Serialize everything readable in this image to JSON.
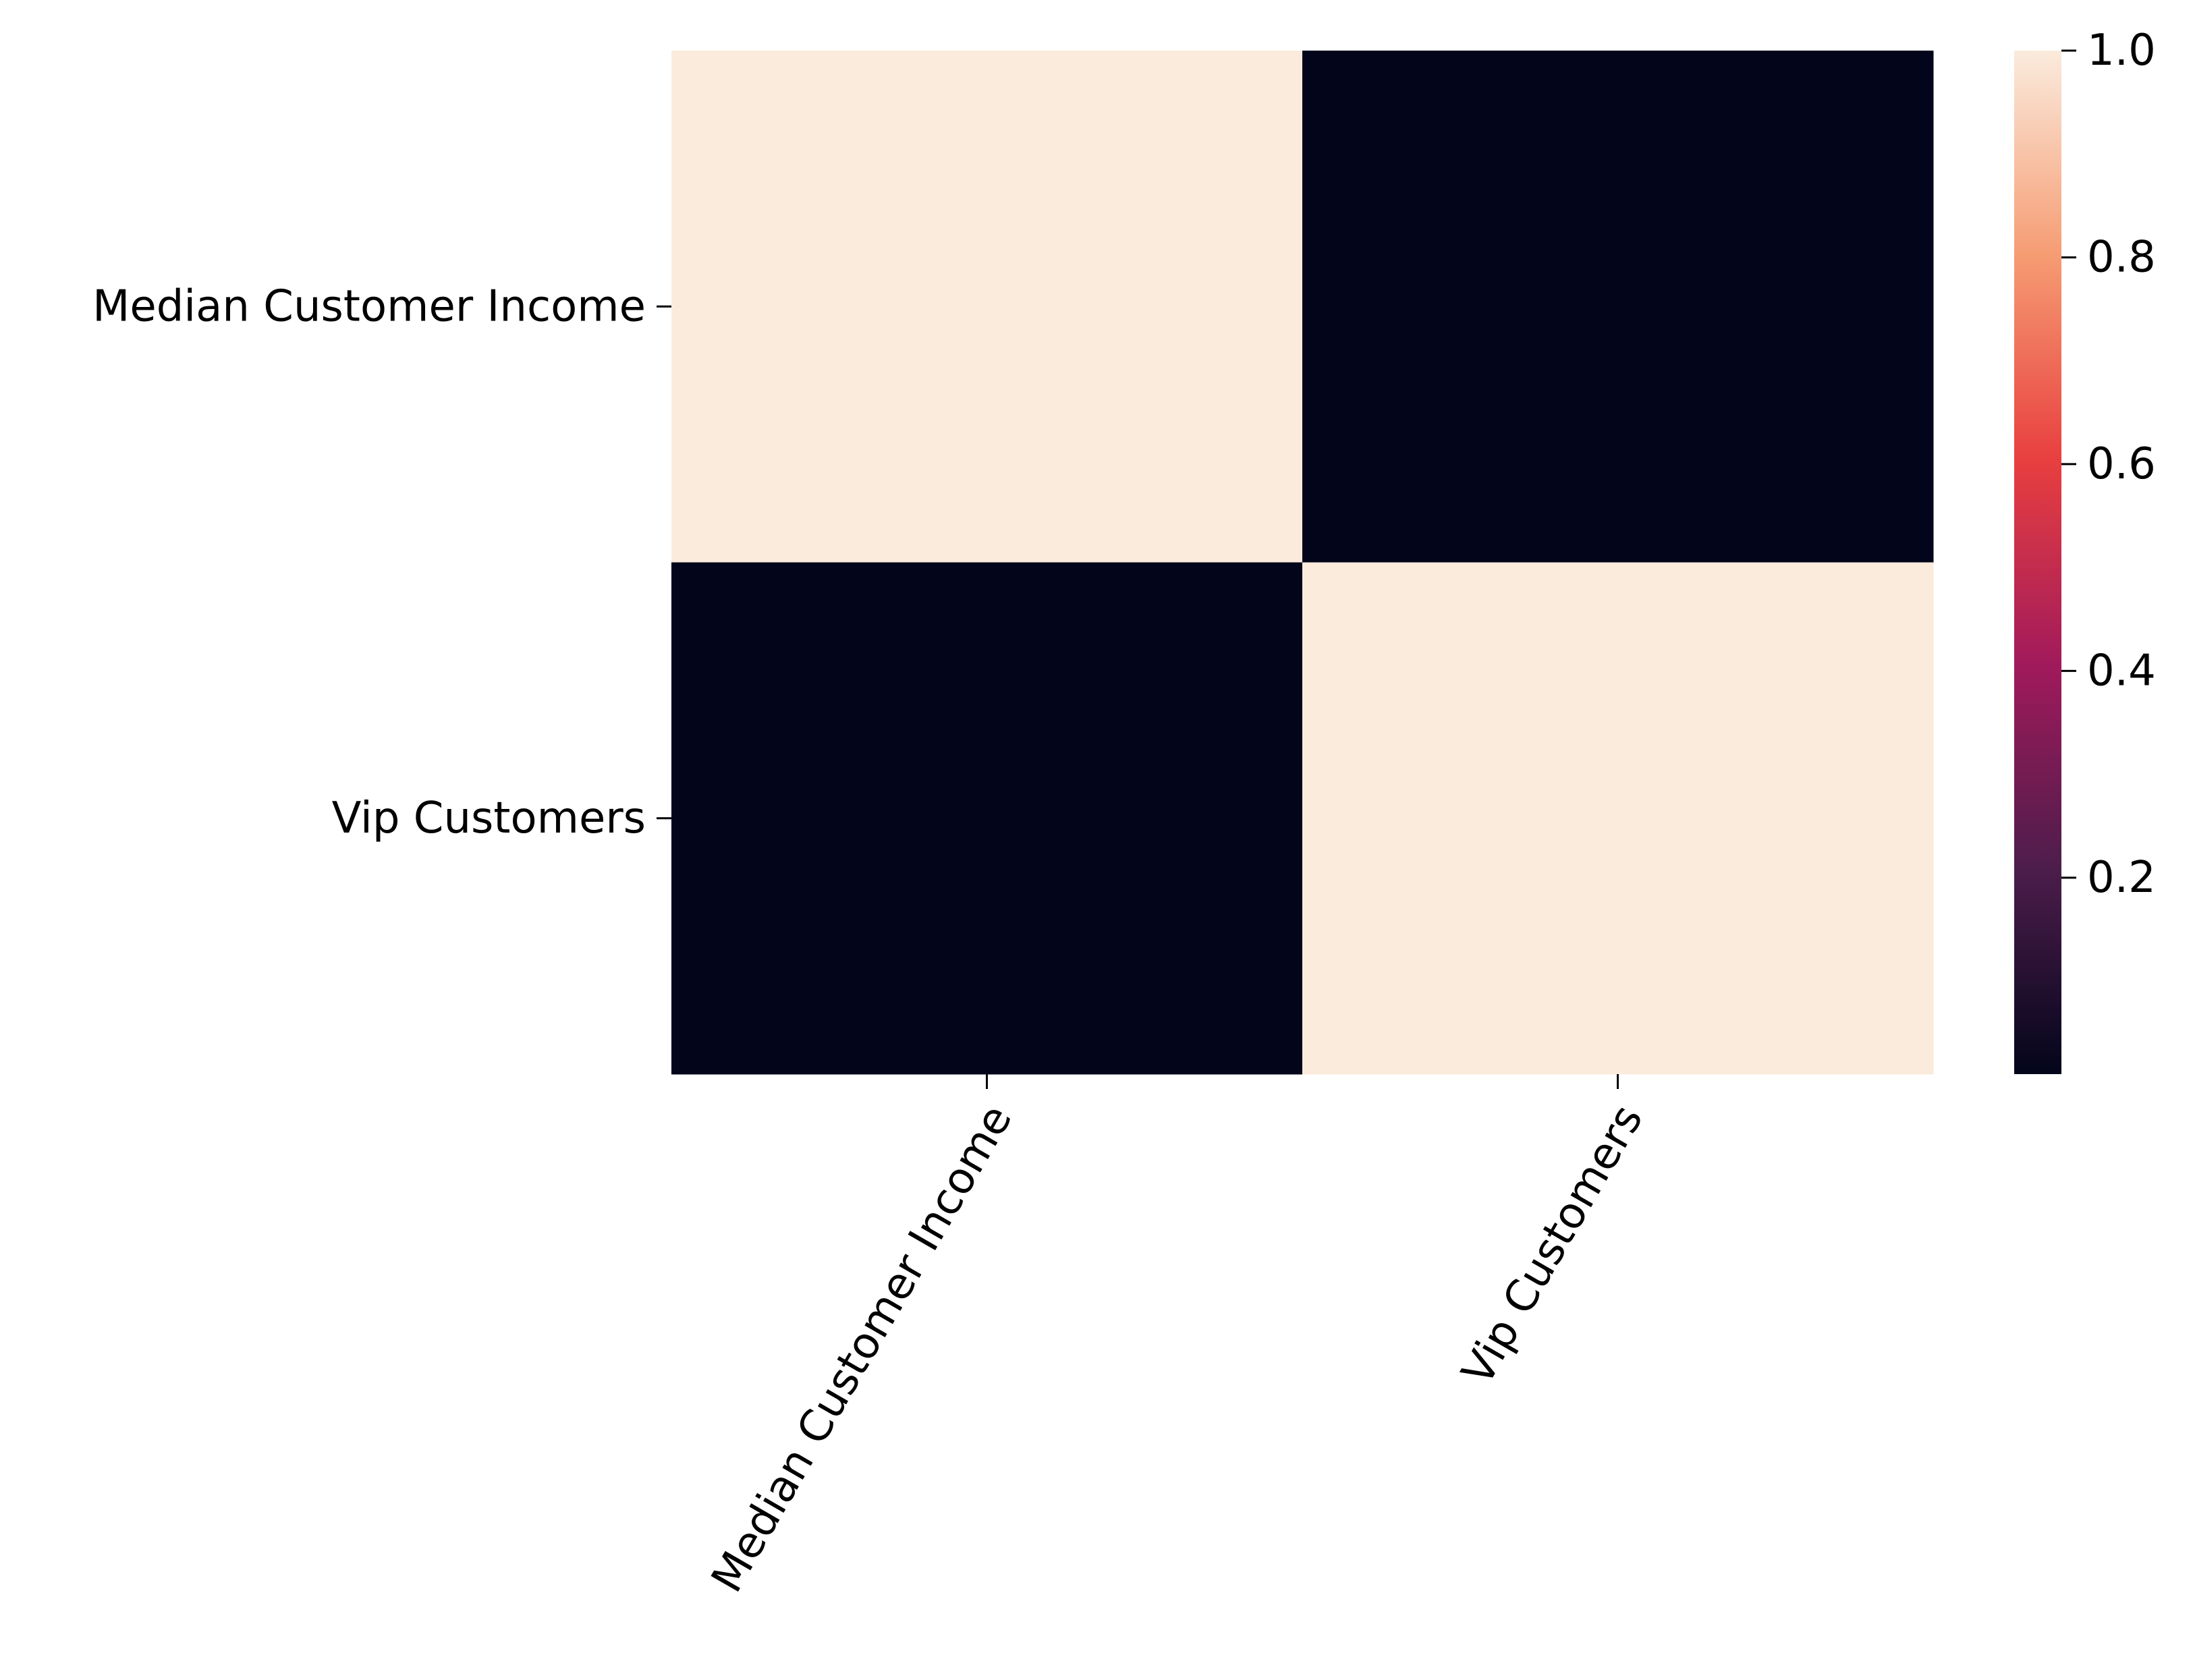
{
  "chart_data": {
    "type": "heatmap",
    "title": "",
    "xlabel": "",
    "ylabel": "",
    "x_categories": [
      "Median Customer Income",
      "Vip Customers"
    ],
    "y_categories": [
      "Median Customer Income",
      "Vip Customers"
    ],
    "values": [
      [
        1.0,
        0.01
      ],
      [
        0.01,
        1.0
      ]
    ],
    "colorbar": {
      "vmin": 0.01,
      "vmax": 1.0,
      "ticks": [
        0.2,
        0.4,
        0.6,
        0.8,
        1.0
      ],
      "tick_labels": [
        "0.2",
        "0.4",
        "0.6",
        "0.8",
        "1.0"
      ],
      "colormap": "rocket",
      "colors": [
        "#03051a",
        "#4c1d4b",
        "#a11a5b",
        "#e83f3f",
        "#f69c73",
        "#faebdd"
      ]
    },
    "grid": false,
    "legend": "colorbar-right"
  }
}
